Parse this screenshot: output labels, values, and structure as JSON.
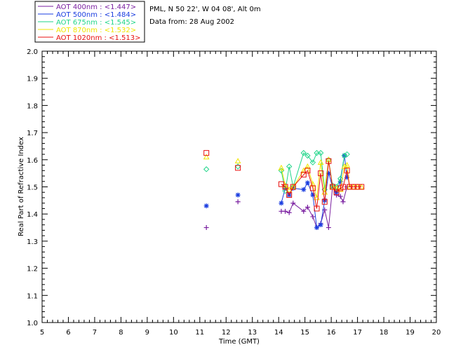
{
  "header": {
    "location": "PML, N 50 22', W 04 08', Alt 0m",
    "date_line": "Data from: 28 Aug 2002"
  },
  "legend": [
    {
      "label": "AOT  400nm : <1.447>",
      "color": "#7a1fa0"
    },
    {
      "label": "AOT  500nm : <1.484>",
      "color": "#1a3de0"
    },
    {
      "label": "AOT  675nm : <1.545>",
      "color": "#22d68a"
    },
    {
      "label": "AOT  870nm : <1.532>",
      "color": "#f2e600"
    },
    {
      "label": "AOT 1020nm : <1.513>",
      "color": "#e8110f"
    }
  ],
  "chart_data": {
    "type": "scatter",
    "title": "",
    "xlabel": "Time (GMT)",
    "ylabel": "Real Part of Refractive Index",
    "xlim": [
      5,
      20
    ],
    "ylim": [
      1.0,
      2.0
    ],
    "x_ticks": [
      "5",
      "6",
      "7",
      "8",
      "9",
      "10",
      "11",
      "12",
      "13",
      "14",
      "15",
      "16",
      "17",
      "18",
      "19",
      "20"
    ],
    "y_ticks": [
      "1.0",
      "1.1",
      "1.2",
      "1.3",
      "1.4",
      "1.5",
      "1.6",
      "1.7",
      "1.8",
      "1.9",
      "2.0"
    ],
    "grid": false,
    "legend_position": "top-left",
    "series": [
      {
        "name": "AOT  400nm : <1.447>",
        "marker": "plus",
        "color": "#7a1fa0",
        "isolated": [
          [
            11.25,
            1.35
          ],
          [
            12.45,
            1.445
          ]
        ],
        "x": [
          14.1,
          14.25,
          14.4,
          14.55,
          14.95,
          15.1,
          15.3,
          15.45,
          15.6,
          15.75,
          15.9,
          16.05,
          16.2,
          16.35,
          16.45,
          16.6
        ],
        "y": [
          1.41,
          1.41,
          1.405,
          1.44,
          1.41,
          1.425,
          1.39,
          1.35,
          1.365,
          1.415,
          1.35,
          1.5,
          1.47,
          1.465,
          1.445,
          1.5
        ]
      },
      {
        "name": "AOT  500nm : <1.484>",
        "marker": "asterisk",
        "color": "#1a3de0",
        "isolated": [
          [
            11.25,
            1.43
          ],
          [
            12.45,
            1.47
          ]
        ],
        "x": [
          14.1,
          14.25,
          14.4,
          14.55,
          14.95,
          15.1,
          15.3,
          15.45,
          15.6,
          15.75,
          15.9,
          16.05,
          16.2,
          16.35,
          16.5,
          16.6
        ],
        "y": [
          1.44,
          1.495,
          1.47,
          1.495,
          1.49,
          1.515,
          1.47,
          1.35,
          1.36,
          1.45,
          1.55,
          1.5,
          1.48,
          1.52,
          1.615,
          1.535
        ]
      },
      {
        "name": "AOT  675nm : <1.545>",
        "marker": "diamond",
        "color": "#22d68a",
        "isolated": [
          [
            11.25,
            1.565
          ],
          [
            12.45,
            1.575
          ]
        ],
        "x": [
          14.1,
          14.25,
          14.4,
          14.55,
          14.95,
          15.1,
          15.3,
          15.45,
          15.6,
          15.75,
          15.9,
          16.05,
          16.2,
          16.35,
          16.5,
          16.6
        ],
        "y": [
          1.56,
          1.485,
          1.575,
          1.5,
          1.625,
          1.615,
          1.59,
          1.625,
          1.625,
          1.49,
          1.6,
          1.505,
          1.5,
          1.53,
          1.615,
          1.62
        ]
      },
      {
        "name": "AOT  870nm : <1.532>",
        "marker": "triangle",
        "color": "#f2e600",
        "isolated": [
          [
            11.25,
            1.61
          ],
          [
            12.45,
            1.595
          ]
        ],
        "x": [
          14.1,
          14.25,
          14.4,
          14.55,
          14.95,
          15.1,
          15.3,
          15.45,
          15.6,
          15.75,
          15.9,
          16.05,
          16.2,
          16.35,
          16.5,
          16.6,
          16.7,
          16.85,
          17.0,
          17.15
        ],
        "y": [
          1.57,
          1.505,
          1.49,
          1.5,
          1.56,
          1.575,
          1.51,
          1.46,
          1.59,
          1.48,
          1.6,
          1.5,
          1.495,
          1.49,
          1.575,
          1.58,
          1.5,
          1.5,
          1.5,
          1.5
        ]
      },
      {
        "name": "AOT 1020nm : <1.513>",
        "marker": "square",
        "color": "#e8110f",
        "isolated": [
          [
            11.25,
            1.625
          ],
          [
            12.45,
            1.57
          ]
        ],
        "x": [
          14.1,
          14.25,
          14.4,
          14.55,
          14.95,
          15.1,
          15.3,
          15.45,
          15.6,
          15.75,
          15.9,
          16.05,
          16.2,
          16.35,
          16.45,
          16.6,
          16.7,
          16.85,
          17.0,
          17.15
        ],
        "y": [
          1.51,
          1.5,
          1.47,
          1.5,
          1.545,
          1.56,
          1.495,
          1.42,
          1.55,
          1.445,
          1.595,
          1.5,
          1.48,
          1.495,
          1.5,
          1.56,
          1.5,
          1.5,
          1.5,
          1.5
        ]
      }
    ]
  }
}
